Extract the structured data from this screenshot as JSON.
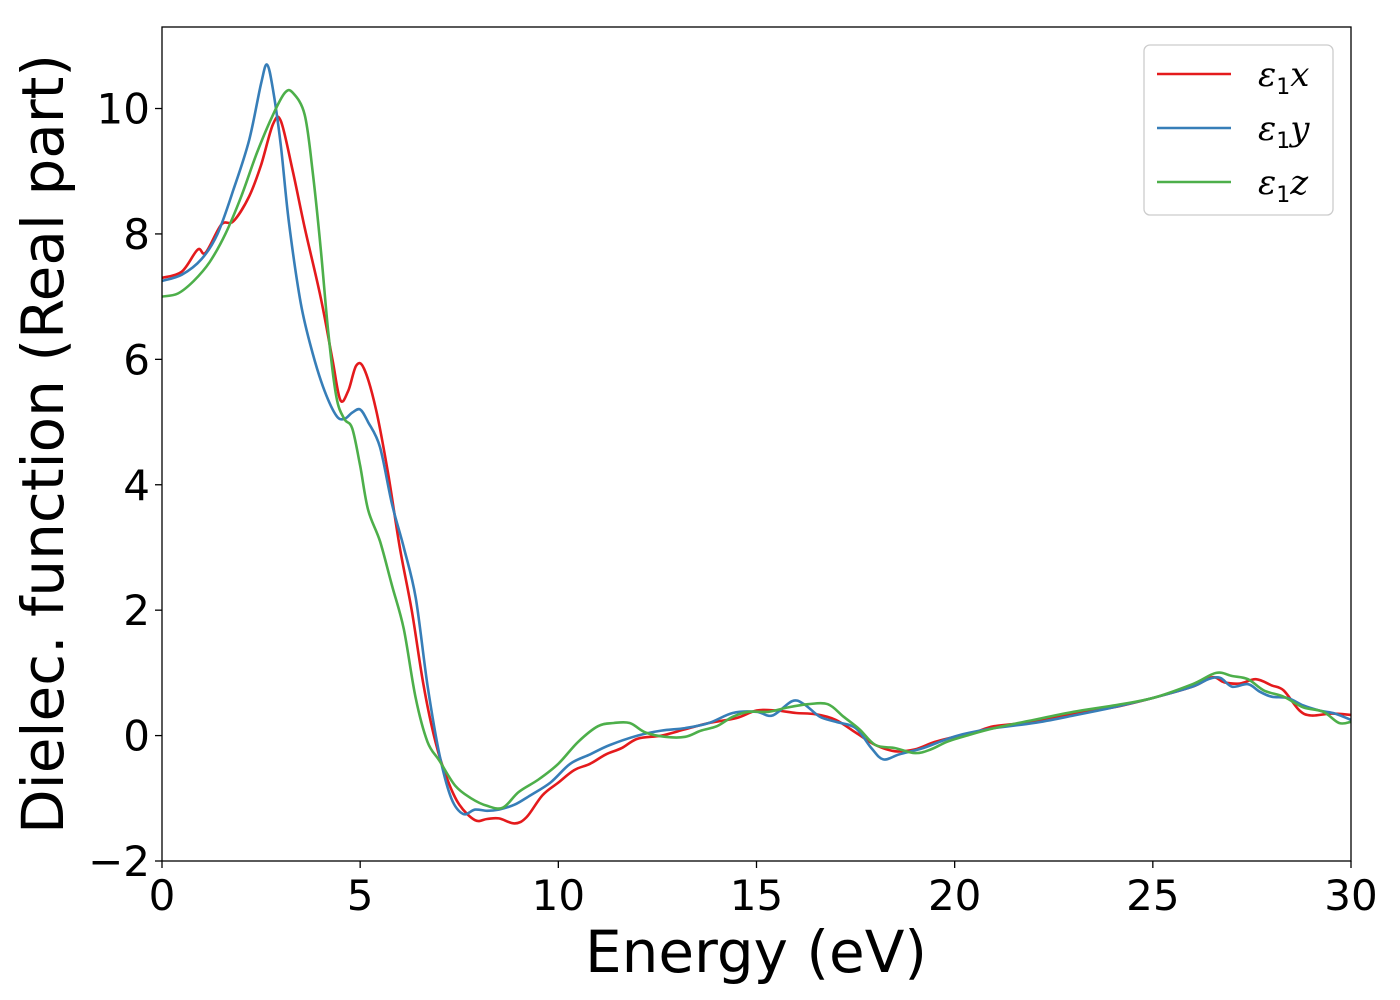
{
  "chart_data": {
    "type": "line",
    "title": "",
    "xlabel": "Energy (eV)",
    "ylabel": "Dielec. function (Real part)",
    "xlim": [
      0,
      30
    ],
    "ylim": [
      -2,
      11.3
    ],
    "x_ticks": [
      0,
      5,
      10,
      15,
      20,
      25,
      30
    ],
    "x_tick_labels": [
      "0",
      "5",
      "10",
      "15",
      "20",
      "25",
      "30"
    ],
    "y_ticks": [
      -2,
      0,
      2,
      4,
      6,
      8,
      10
    ],
    "y_tick_labels": [
      "−2",
      "0",
      "2",
      "4",
      "6",
      "8",
      "10"
    ],
    "grid": false,
    "legend_position": "top-right",
    "series": [
      {
        "name": "ε₁x",
        "legend_base": "ε",
        "legend_sub": "1",
        "legend_var": "x",
        "color": "#e41a1c",
        "points": [
          [
            0,
            7.3
          ],
          [
            0.5,
            7.4
          ],
          [
            0.9,
            7.75
          ],
          [
            1.1,
            7.7
          ],
          [
            1.5,
            8.15
          ],
          [
            1.8,
            8.2
          ],
          [
            2.2,
            8.6
          ],
          [
            2.5,
            9.1
          ],
          [
            2.8,
            9.75
          ],
          [
            3.0,
            9.8
          ],
          [
            3.3,
            9.0
          ],
          [
            3.6,
            8.1
          ],
          [
            4.0,
            7.0
          ],
          [
            4.3,
            6.0
          ],
          [
            4.5,
            5.35
          ],
          [
            4.7,
            5.5
          ],
          [
            4.9,
            5.9
          ],
          [
            5.1,
            5.85
          ],
          [
            5.4,
            5.2
          ],
          [
            5.7,
            4.2
          ],
          [
            6.0,
            3.0
          ],
          [
            6.3,
            2.0
          ],
          [
            6.6,
            0.8
          ],
          [
            6.9,
            -0.1
          ],
          [
            7.2,
            -0.7
          ],
          [
            7.5,
            -1.1
          ],
          [
            7.9,
            -1.35
          ],
          [
            8.2,
            -1.33
          ],
          [
            8.5,
            -1.32
          ],
          [
            8.9,
            -1.4
          ],
          [
            9.2,
            -1.3
          ],
          [
            9.6,
            -0.95
          ],
          [
            10.0,
            -0.75
          ],
          [
            10.4,
            -0.55
          ],
          [
            10.8,
            -0.45
          ],
          [
            11.2,
            -0.3
          ],
          [
            11.6,
            -0.2
          ],
          [
            12.0,
            -0.05
          ],
          [
            12.6,
            0.0
          ],
          [
            13.2,
            0.1
          ],
          [
            13.8,
            0.2
          ],
          [
            14.5,
            0.28
          ],
          [
            15.0,
            0.4
          ],
          [
            15.5,
            0.4
          ],
          [
            16.0,
            0.36
          ],
          [
            16.5,
            0.34
          ],
          [
            17.0,
            0.25
          ],
          [
            17.5,
            0.05
          ],
          [
            18.0,
            -0.15
          ],
          [
            18.5,
            -0.25
          ],
          [
            19.0,
            -0.22
          ],
          [
            19.5,
            -0.1
          ],
          [
            20.0,
            -0.02
          ],
          [
            20.5,
            0.05
          ],
          [
            21.0,
            0.15
          ],
          [
            22.0,
            0.22
          ],
          [
            23.0,
            0.35
          ],
          [
            24.0,
            0.45
          ],
          [
            25.0,
            0.6
          ],
          [
            26.0,
            0.78
          ],
          [
            26.5,
            0.93
          ],
          [
            26.8,
            0.85
          ],
          [
            27.2,
            0.83
          ],
          [
            27.6,
            0.9
          ],
          [
            28.0,
            0.8
          ],
          [
            28.3,
            0.72
          ],
          [
            28.7,
            0.4
          ],
          [
            29.0,
            0.32
          ],
          [
            29.5,
            0.35
          ],
          [
            30,
            0.33
          ]
        ]
      },
      {
        "name": "ε₁y",
        "legend_base": "ε",
        "legend_sub": "1",
        "legend_var": "y",
        "color": "#377eb8",
        "points": [
          [
            0,
            7.25
          ],
          [
            0.5,
            7.35
          ],
          [
            1.0,
            7.6
          ],
          [
            1.4,
            8.0
          ],
          [
            1.8,
            8.7
          ],
          [
            2.2,
            9.5
          ],
          [
            2.5,
            10.4
          ],
          [
            2.65,
            10.7
          ],
          [
            2.8,
            10.3
          ],
          [
            3.0,
            9.4
          ],
          [
            3.2,
            8.2
          ],
          [
            3.5,
            6.9
          ],
          [
            3.8,
            6.1
          ],
          [
            4.1,
            5.5
          ],
          [
            4.4,
            5.1
          ],
          [
            4.6,
            5.05
          ],
          [
            4.8,
            5.15
          ],
          [
            5.0,
            5.2
          ],
          [
            5.2,
            5.0
          ],
          [
            5.5,
            4.6
          ],
          [
            5.8,
            3.7
          ],
          [
            6.1,
            3.0
          ],
          [
            6.4,
            2.2
          ],
          [
            6.7,
            0.8
          ],
          [
            7.0,
            -0.3
          ],
          [
            7.3,
            -1.0
          ],
          [
            7.6,
            -1.25
          ],
          [
            7.9,
            -1.18
          ],
          [
            8.2,
            -1.2
          ],
          [
            8.5,
            -1.18
          ],
          [
            8.9,
            -1.1
          ],
          [
            9.3,
            -0.95
          ],
          [
            9.8,
            -0.75
          ],
          [
            10.3,
            -0.45
          ],
          [
            10.8,
            -0.3
          ],
          [
            11.3,
            -0.15
          ],
          [
            12.0,
            0.0
          ],
          [
            12.6,
            0.08
          ],
          [
            13.2,
            0.12
          ],
          [
            13.8,
            0.2
          ],
          [
            14.4,
            0.36
          ],
          [
            15.0,
            0.38
          ],
          [
            15.4,
            0.32
          ],
          [
            15.9,
            0.55
          ],
          [
            16.2,
            0.5
          ],
          [
            16.6,
            0.3
          ],
          [
            17.0,
            0.22
          ],
          [
            17.5,
            0.12
          ],
          [
            17.9,
            -0.2
          ],
          [
            18.2,
            -0.38
          ],
          [
            18.6,
            -0.3
          ],
          [
            19.2,
            -0.2
          ],
          [
            19.7,
            -0.08
          ],
          [
            20.2,
            0.02
          ],
          [
            21.0,
            0.12
          ],
          [
            22.0,
            0.2
          ],
          [
            23.0,
            0.32
          ],
          [
            24.0,
            0.45
          ],
          [
            25.0,
            0.6
          ],
          [
            26.0,
            0.78
          ],
          [
            26.4,
            0.9
          ],
          [
            26.7,
            0.92
          ],
          [
            27.0,
            0.78
          ],
          [
            27.4,
            0.82
          ],
          [
            27.7,
            0.7
          ],
          [
            28.0,
            0.62
          ],
          [
            28.4,
            0.6
          ],
          [
            28.8,
            0.48
          ],
          [
            29.2,
            0.4
          ],
          [
            29.6,
            0.35
          ],
          [
            30,
            0.25
          ]
        ]
      },
      {
        "name": "ε₁z",
        "legend_base": "ε",
        "legend_sub": "1",
        "legend_var": "z",
        "color": "#4daf4a",
        "points": [
          [
            0,
            7.0
          ],
          [
            0.4,
            7.05
          ],
          [
            0.8,
            7.25
          ],
          [
            1.2,
            7.55
          ],
          [
            1.6,
            8.0
          ],
          [
            2.0,
            8.6
          ],
          [
            2.4,
            9.3
          ],
          [
            2.8,
            9.9
          ],
          [
            3.1,
            10.25
          ],
          [
            3.3,
            10.25
          ],
          [
            3.6,
            9.9
          ],
          [
            3.8,
            9.0
          ],
          [
            4.0,
            7.8
          ],
          [
            4.2,
            6.4
          ],
          [
            4.4,
            5.4
          ],
          [
            4.6,
            5.05
          ],
          [
            4.8,
            4.9
          ],
          [
            5.0,
            4.3
          ],
          [
            5.2,
            3.6
          ],
          [
            5.5,
            3.1
          ],
          [
            5.8,
            2.4
          ],
          [
            6.1,
            1.7
          ],
          [
            6.4,
            0.6
          ],
          [
            6.7,
            -0.1
          ],
          [
            7.0,
            -0.4
          ],
          [
            7.4,
            -0.8
          ],
          [
            7.8,
            -1.0
          ],
          [
            8.2,
            -1.12
          ],
          [
            8.6,
            -1.15
          ],
          [
            9.0,
            -0.9
          ],
          [
            9.5,
            -0.7
          ],
          [
            10.0,
            -0.45
          ],
          [
            10.5,
            -0.1
          ],
          [
            11.0,
            0.15
          ],
          [
            11.4,
            0.2
          ],
          [
            11.8,
            0.2
          ],
          [
            12.2,
            0.05
          ],
          [
            12.7,
            -0.02
          ],
          [
            13.2,
            -0.02
          ],
          [
            13.6,
            0.08
          ],
          [
            14.0,
            0.15
          ],
          [
            14.4,
            0.3
          ],
          [
            14.8,
            0.38
          ],
          [
            15.3,
            0.38
          ],
          [
            15.8,
            0.45
          ],
          [
            16.3,
            0.5
          ],
          [
            16.8,
            0.5
          ],
          [
            17.2,
            0.3
          ],
          [
            17.6,
            0.1
          ],
          [
            18.0,
            -0.15
          ],
          [
            18.5,
            -0.2
          ],
          [
            19.0,
            -0.28
          ],
          [
            19.4,
            -0.22
          ],
          [
            19.8,
            -0.1
          ],
          [
            20.3,
            0.0
          ],
          [
            21.0,
            0.12
          ],
          [
            22.0,
            0.25
          ],
          [
            23.0,
            0.38
          ],
          [
            24.0,
            0.48
          ],
          [
            25.0,
            0.6
          ],
          [
            26.0,
            0.82
          ],
          [
            26.6,
            1.0
          ],
          [
            27.0,
            0.95
          ],
          [
            27.4,
            0.9
          ],
          [
            27.8,
            0.72
          ],
          [
            28.3,
            0.62
          ],
          [
            28.8,
            0.45
          ],
          [
            29.3,
            0.38
          ],
          [
            29.7,
            0.2
          ],
          [
            30,
            0.22
          ]
        ]
      }
    ]
  }
}
